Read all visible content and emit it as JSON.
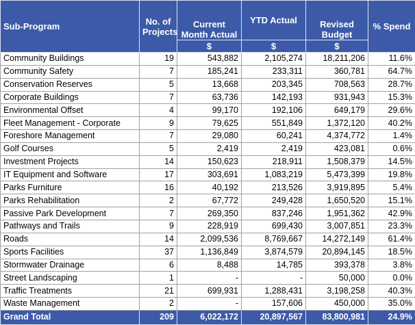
{
  "table": {
    "columns": [
      "Sub-Program",
      "No. of Projects",
      "Current Month Actual",
      "YTD Actual",
      "Revised Budget",
      "% Spend"
    ],
    "units": [
      "$",
      "$",
      "$"
    ],
    "rows": [
      [
        "Community Buildings",
        "19",
        "543,882",
        "2,105,274",
        "18,211,206",
        "11.6%"
      ],
      [
        "Community Safety",
        "7",
        "185,241",
        "233,311",
        "360,781",
        "64.7%"
      ],
      [
        "Conservation Reserves",
        "5",
        "13,668",
        "203,345",
        "708,563",
        "28.7%"
      ],
      [
        "Corporate Buildings",
        "7",
        "63,736",
        "142,193",
        "931,943",
        "15.3%"
      ],
      [
        "Environmental Offset",
        "4",
        "99,170",
        "192,106",
        "649,179",
        "29.6%"
      ],
      [
        "Fleet Management - Corporate",
        "9",
        "79,625",
        "551,849",
        "1,372,120",
        "40.2%"
      ],
      [
        "Foreshore Management",
        "7",
        "29,080",
        "60,241",
        "4,374,772",
        "1.4%"
      ],
      [
        "Golf Courses",
        "5",
        "2,419",
        "2,419",
        "423,081",
        "0.6%"
      ],
      [
        "Investment Projects",
        "14",
        "150,623",
        "218,911",
        "1,508,379",
        "14.5%"
      ],
      [
        "IT Equipment and Software",
        "17",
        "303,691",
        "1,083,219",
        "5,473,399",
        "19.8%"
      ],
      [
        "Parks Furniture",
        "16",
        "40,192",
        "213,526",
        "3,919,895",
        "5.4%"
      ],
      [
        "Parks Rehabilitation",
        "2",
        "67,772",
        "249,428",
        "1,650,520",
        "15.1%"
      ],
      [
        "Passive Park Development",
        "7",
        "269,350",
        "837,246",
        "1,951,362",
        "42.9%"
      ],
      [
        "Pathways and Trails",
        "9",
        "228,919",
        "699,430",
        "3,007,851",
        "23.3%"
      ],
      [
        "Roads",
        "14",
        "2,099,536",
        "8,769,667",
        "14,272,149",
        "61.4%"
      ],
      [
        "Sports Facilities",
        "37",
        "1,136,849",
        "3,874,579",
        "20,894,145",
        "18.5%"
      ],
      [
        "Stormwater Drainage",
        "6",
        "8,488",
        "14,785",
        "393,378",
        "3.8%"
      ],
      [
        "Street Landscaping",
        "1",
        "-",
        "-",
        "50,000",
        "0.0%"
      ],
      [
        "Traffic Treatments",
        "21",
        "699,931",
        "1,288,431",
        "3,198,258",
        "40.3%"
      ],
      [
        "Waste Management",
        "2",
        "-",
        "157,606",
        "450,000",
        "35.0%"
      ]
    ],
    "total": [
      "Grand Total",
      "209",
      "6,022,172",
      "20,897,567",
      "83,800,981",
      "24.9%"
    ]
  }
}
